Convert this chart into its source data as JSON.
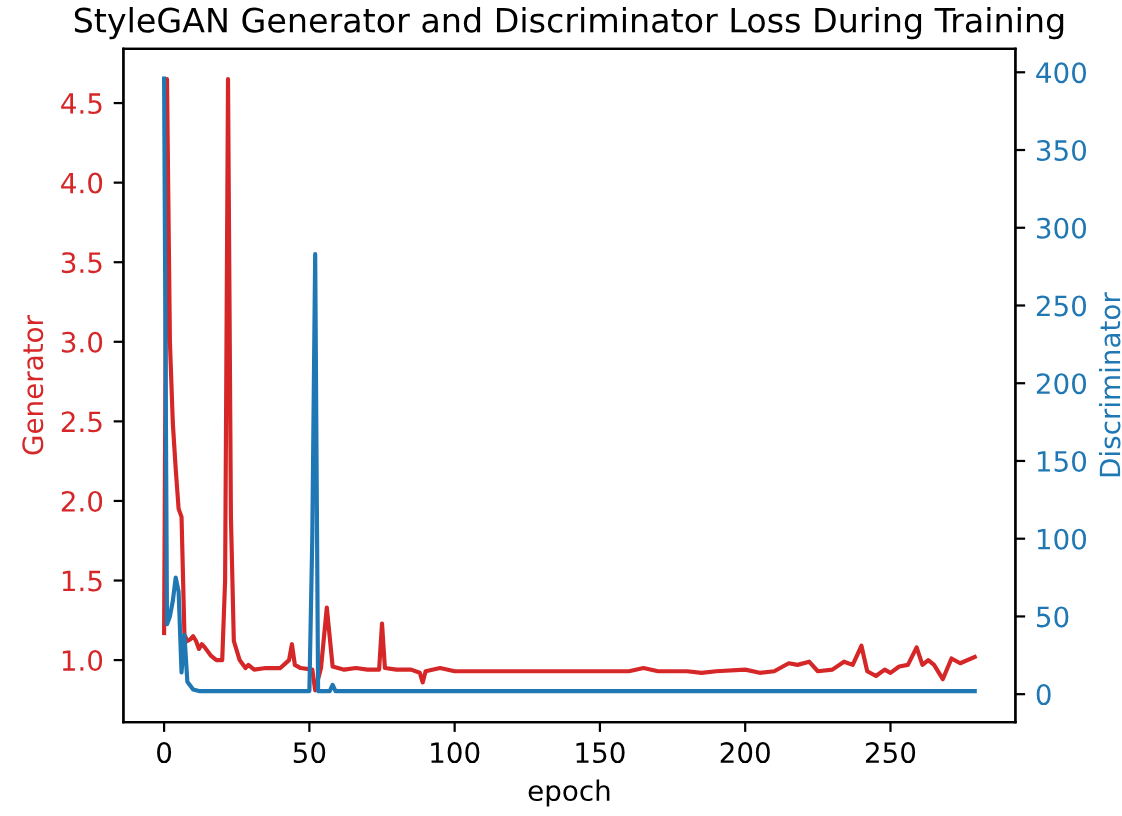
{
  "chart_data": {
    "type": "line",
    "title": "StyleGAN Generator and Discriminator Loss During Training",
    "xlabel": "epoch",
    "ylabel": "Generator",
    "y2label": "Discriminator",
    "xlim": [
      -14,
      293
    ],
    "xticks": [
      0,
      50,
      100,
      150,
      200,
      250
    ],
    "ylim": [
      0.61,
      4.84
    ],
    "yticks": [
      {
        "value": 1.0,
        "label": "1.0"
      },
      {
        "value": 1.5,
        "label": "1.5"
      },
      {
        "value": 2.0,
        "label": "2.0"
      },
      {
        "value": 2.5,
        "label": "2.5"
      },
      {
        "value": 3.0,
        "label": "3.0"
      },
      {
        "value": 3.5,
        "label": "3.5"
      },
      {
        "value": 4.0,
        "label": "4.0"
      },
      {
        "value": 4.5,
        "label": "4.5"
      }
    ],
    "y2lim": [
      -18,
      415
    ],
    "y2ticks": [
      0,
      50,
      100,
      150,
      200,
      250,
      300,
      350,
      400
    ],
    "grid": false,
    "legend": false,
    "marker": "none",
    "line_style": "solid",
    "series": [
      {
        "color": "#d62728",
        "axis": "y",
        "x": [
          0,
          1,
          2,
          3,
          4,
          5,
          6,
          7,
          8,
          9,
          10,
          11,
          12,
          13,
          14,
          16,
          18,
          20,
          21,
          22,
          23,
          24,
          26,
          28,
          29,
          31,
          35,
          40,
          43,
          44,
          45,
          47,
          51,
          52,
          54,
          56,
          58,
          62,
          66,
          70,
          74,
          75,
          76,
          80,
          85,
          88,
          89,
          90,
          95,
          100,
          110,
          120,
          130,
          140,
          150,
          160,
          165,
          170,
          180,
          185,
          190,
          200,
          205,
          210,
          215,
          218,
          222,
          225,
          230,
          234,
          237,
          240,
          242,
          245,
          248,
          250,
          253,
          256,
          259,
          261,
          263,
          265,
          268,
          271,
          274,
          279
        ],
        "values": [
          1.17,
          4.65,
          3.0,
          2.49,
          2.2,
          1.95,
          1.9,
          1.16,
          1.12,
          1.13,
          1.15,
          1.12,
          1.07,
          1.1,
          1.08,
          1.03,
          1.0,
          1.0,
          1.5,
          4.65,
          1.9,
          1.12,
          1.0,
          0.95,
          0.97,
          0.94,
          0.95,
          0.95,
          1.0,
          1.1,
          0.97,
          0.95,
          0.94,
          0.81,
          0.95,
          1.33,
          0.96,
          0.94,
          0.95,
          0.94,
          0.94,
          1.23,
          0.95,
          0.94,
          0.94,
          0.92,
          0.86,
          0.93,
          0.95,
          0.93,
          0.93,
          0.93,
          0.93,
          0.93,
          0.93,
          0.93,
          0.95,
          0.93,
          0.93,
          0.92,
          0.93,
          0.94,
          0.92,
          0.93,
          0.98,
          0.97,
          0.99,
          0.93,
          0.94,
          0.99,
          0.97,
          1.09,
          0.93,
          0.9,
          0.94,
          0.92,
          0.96,
          0.97,
          1.08,
          0.97,
          1.0,
          0.97,
          0.88,
          1.01,
          0.98,
          1.02
        ]
      },
      {
        "color": "#1f77b4",
        "axis": "y2",
        "x": [
          0,
          1,
          2,
          3,
          4,
          5,
          6,
          7,
          8,
          10,
          12,
          20,
          50,
          51,
          52,
          53,
          57,
          58,
          59,
          100,
          200,
          279
        ],
        "values": [
          396,
          45,
          50,
          60,
          75,
          66,
          14,
          38,
          8,
          3,
          2,
          2,
          2,
          100,
          283,
          2,
          2,
          6,
          2,
          2,
          2,
          2
        ]
      }
    ]
  }
}
